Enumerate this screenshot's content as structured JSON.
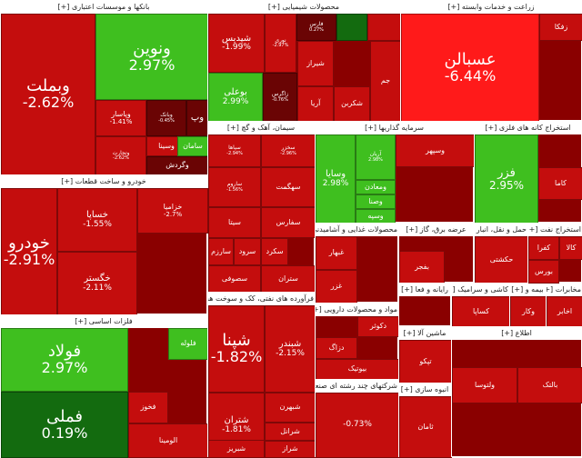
{
  "chart_data": {
    "type": "treemap",
    "colors": {
      "strong_down": "#b10000",
      "down": "#c40d0d",
      "mild_down": "#8a0000",
      "dark_down": "#6a0404",
      "up": "#3fbf1f",
      "strong_up": "#2fa81a",
      "dark_up": "#136b0f",
      "flat": "#7a0a0a",
      "bright_down": "#ff1a1a"
    },
    "sectors": [
      {
        "id": "banks",
        "name": "بانکها و موسسات اعتباری",
        "tiles": [
          {
            "symbol": "وبملت",
            "change": "-2.62%",
            "color": "down",
            "size": "xl"
          },
          {
            "symbol": "ونوین",
            "change": "2.97%",
            "color": "up",
            "size": "xl"
          },
          {
            "symbol": "وپاسار",
            "change": "-1.41%",
            "color": "down",
            "size": "s"
          },
          {
            "symbol": "وبانک",
            "change": "-0.45%",
            "color": "dark_down",
            "size": "xs"
          },
          {
            "symbol": "وپ",
            "change": "",
            "color": "dark_down",
            "size": "m"
          },
          {
            "symbol": "وتجارت",
            "change": "-2.62%",
            "color": "down",
            "size": "xs"
          },
          {
            "symbol": "وسینا",
            "change": "",
            "color": "down",
            "size": "s"
          },
          {
            "symbol": "سامان",
            "change": "",
            "color": "up",
            "size": "s"
          },
          {
            "symbol": "وگردش",
            "change": "",
            "color": "dark_down",
            "size": "s"
          }
        ]
      },
      {
        "id": "chemicals",
        "name": "محصولات شیمیایی",
        "tiles": [
          {
            "symbol": "شپدیس",
            "change": "-1.99%",
            "color": "down",
            "size": "m"
          },
          {
            "symbol": "نوری",
            "change": "-2.97%",
            "color": "down",
            "size": "xs"
          },
          {
            "symbol": "فارس",
            "change": "0.27%",
            "color": "dark_down",
            "size": "xs"
          },
          {
            "symbol": "",
            "change": "",
            "color": "dark_up",
            "size": "xs"
          },
          {
            "symbol": "",
            "change": "",
            "color": "down",
            "size": "xs"
          },
          {
            "symbol": "بوعلی",
            "change": "2.99%",
            "color": "up",
            "size": "m"
          },
          {
            "symbol": "زاگرس",
            "change": "-0.76%",
            "color": "dark_down",
            "size": "xs"
          },
          {
            "symbol": "شیراز",
            "change": "",
            "color": "down",
            "size": "s"
          },
          {
            "symbol": "آریا",
            "change": "",
            "color": "down",
            "size": "s"
          },
          {
            "symbol": "شکربن",
            "change": "",
            "color": "down",
            "size": "s"
          },
          {
            "symbol": "جم",
            "change": "",
            "color": "down",
            "size": "s"
          }
        ]
      },
      {
        "id": "agri",
        "name": "زراعت و خدمات وابسته",
        "tiles": [
          {
            "symbol": "عسبالن",
            "change": "-6.44%",
            "color": "bright_down",
            "size": "xl"
          },
          {
            "symbol": "زفکا",
            "change": "",
            "color": "down",
            "size": "s"
          }
        ]
      },
      {
        "id": "cement",
        "name": "سیمان، آهک و گچ",
        "tiles": [
          {
            "symbol": "سپاها",
            "change": "-2.94%",
            "color": "down",
            "size": "xs"
          },
          {
            "symbol": "سخزر",
            "change": "-2.96%",
            "color": "down",
            "size": "xs"
          },
          {
            "symbol": "ساروم",
            "change": "-1.56%",
            "color": "down",
            "size": "xs"
          },
          {
            "symbol": "سهگمت",
            "change": "",
            "color": "down",
            "size": "s"
          },
          {
            "symbol": "سفارس",
            "change": "",
            "color": "down",
            "size": "s"
          },
          {
            "symbol": "سیتا",
            "change": "",
            "color": "down",
            "size": "s"
          },
          {
            "symbol": "سارزم",
            "change": "",
            "color": "down",
            "size": "s"
          },
          {
            "symbol": "سرود",
            "change": "",
            "color": "down",
            "size": "s"
          },
          {
            "symbol": "سکرد",
            "change": "",
            "color": "down",
            "size": "s"
          },
          {
            "symbol": "سصوفی",
            "change": "",
            "color": "down",
            "size": "s"
          },
          {
            "symbol": "ستران",
            "change": "",
            "color": "down",
            "size": "s"
          }
        ]
      },
      {
        "id": "investment",
        "name": "سرمایه گذاریها",
        "tiles": [
          {
            "symbol": "وسپهر",
            "change": "",
            "color": "down",
            "size": "s"
          },
          {
            "symbol": "وسایا",
            "change": "2.98%",
            "color": "up",
            "size": "m"
          },
          {
            "symbol": "آریان",
            "change": "2.98%",
            "color": "up",
            "size": "xs"
          },
          {
            "symbol": "ومعادن",
            "change": "",
            "color": "up",
            "size": "s"
          },
          {
            "symbol": "وصنا",
            "change": "",
            "color": "up",
            "size": "s"
          },
          {
            "symbol": "وسپه",
            "change": "",
            "color": "up",
            "size": "s"
          }
        ]
      },
      {
        "id": "mining",
        "name": "استخراج کانه های فلزی",
        "tiles": [
          {
            "symbol": "فزر",
            "change": "2.95%",
            "color": "up",
            "size": "l"
          },
          {
            "symbol": "کاما",
            "change": "",
            "color": "down",
            "size": "s"
          }
        ]
      },
      {
        "id": "auto",
        "name": "خودرو و ساخت قطعات",
        "tiles": [
          {
            "symbol": "خودرو",
            "change": "-2.91%",
            "color": "down",
            "size": "xl"
          },
          {
            "symbol": "خساپا",
            "change": "-1.55%",
            "color": "down",
            "size": "m"
          },
          {
            "symbol": "خزامیا",
            "change": "-2.7%",
            "color": "down",
            "size": "s"
          },
          {
            "symbol": "خگستر",
            "change": "-2.11%",
            "color": "down",
            "size": "m"
          }
        ]
      },
      {
        "id": "metals",
        "name": "فلزات اساسی",
        "tiles": [
          {
            "symbol": "فولاد",
            "change": "2.97%",
            "color": "up",
            "size": "xl"
          },
          {
            "symbol": "فملی",
            "change": "0.19%",
            "color": "dark_up",
            "size": "xl"
          },
          {
            "symbol": "فخوز",
            "change": "",
            "color": "down",
            "size": "s"
          },
          {
            "symbol": "فلوله",
            "change": "",
            "color": "up",
            "size": "s"
          },
          {
            "symbol": "الومینا",
            "change": "",
            "color": "down",
            "size": "s"
          }
        ]
      },
      {
        "id": "food",
        "name": "محصولات غذایی و آشامیدنی",
        "tiles": [
          {
            "symbol": "غبهار",
            "change": "",
            "color": "down",
            "size": "s"
          },
          {
            "symbol": "غزر",
            "change": "",
            "color": "down",
            "size": "s"
          }
        ]
      },
      {
        "id": "oil",
        "name": "فرآورده های نفتی، کک و سوخت هسته ای",
        "tiles": [
          {
            "symbol": "شپنا",
            "change": "-1.82%",
            "color": "down",
            "size": "xl"
          },
          {
            "symbol": "شبندر",
            "change": "-2.15%",
            "color": "down",
            "size": "m"
          },
          {
            "symbol": "شبهرن",
            "change": "",
            "color": "down",
            "size": "s"
          },
          {
            "symbol": "شتران",
            "change": "-1.81%",
            "color": "down",
            "size": "m"
          },
          {
            "symbol": "شرانل",
            "change": "",
            "color": "down",
            "size": "s"
          },
          {
            "symbol": "شراز",
            "change": "",
            "color": "down",
            "size": "s"
          },
          {
            "symbol": "شبریز",
            "change": "",
            "color": "down",
            "size": "s"
          }
        ]
      },
      {
        "id": "pharma",
        "name": "مواد و محصولات دارویی",
        "tiles": [
          {
            "symbol": "دکوثر",
            "change": "",
            "color": "down",
            "size": "s"
          },
          {
            "symbol": "دزاگ",
            "change": "",
            "color": "down",
            "size": "s"
          },
          {
            "symbol": "بیوتیک",
            "change": "",
            "color": "down",
            "size": "s"
          }
        ]
      },
      {
        "id": "utilities",
        "name": "عرضه برق، گاز",
        "tiles": [
          {
            "symbol": "بفجر",
            "change": "",
            "color": "down",
            "size": "s"
          }
        ]
      },
      {
        "id": "holding",
        "name": "شرکتهای چند رشته ای صنعتی",
        "tiles": [
          {
            "symbol": "",
            "change": "-0.73%",
            "color": "down",
            "size": "m"
          }
        ]
      },
      {
        "id": "transport",
        "name": "حمل و نقل، انبار",
        "tiles": [
          {
            "symbol": "حکشتی",
            "change": "",
            "color": "down",
            "size": "s"
          }
        ]
      },
      {
        "id": "computer",
        "name": "رایانه و فعا",
        "tiles": []
      },
      {
        "id": "machinery",
        "name": "ماشین آلا",
        "tiles": [
          {
            "symbol": "تپکو",
            "change": "",
            "color": "down",
            "size": "s"
          }
        ]
      },
      {
        "id": "construction",
        "name": "انبوه سازی",
        "tiles": [
          {
            "symbol": "ثامان",
            "change": "",
            "color": "down",
            "size": "s"
          }
        ]
      },
      {
        "id": "tiles_ceramics",
        "name": "کاشی و سرامیک",
        "tiles": [
          {
            "symbol": "کساپا",
            "change": "",
            "color": "down",
            "size": "s"
          }
        ]
      },
      {
        "id": "insurance",
        "name": "بیمه و",
        "tiles": [
          {
            "symbol": "وکار",
            "change": "",
            "color": "down",
            "size": "s"
          }
        ]
      },
      {
        "id": "telecom",
        "name": "مخابرات",
        "tiles": [
          {
            "symbol": "اخابر",
            "change": "",
            "color": "down",
            "size": "s"
          }
        ]
      },
      {
        "id": "other_mining",
        "name": "استخراج نفت",
        "tiles": [
          {
            "symbol": "بورس",
            "change": "",
            "color": "down",
            "size": "s"
          },
          {
            "symbol": "کفرا",
            "change": "",
            "color": "down",
            "size": "s"
          },
          {
            "symbol": "کالا",
            "change": "",
            "color": "down",
            "size": "s"
          }
        ]
      },
      {
        "id": "lab_equipment",
        "name": "اطلاع",
        "tiles": [
          {
            "symbol": "ولتوسا",
            "change": "",
            "color": "down",
            "size": "s"
          },
          {
            "symbol": "بالتک",
            "change": "",
            "color": "down",
            "size": "s"
          }
        ]
      }
    ]
  }
}
